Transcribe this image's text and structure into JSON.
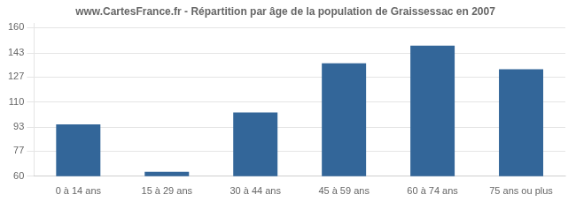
{
  "chart_data": {
    "type": "bar",
    "title": "www.CartesFrance.fr - Répartition par âge de la population de Graissessac en 2007",
    "categories": [
      "0 à 14 ans",
      "15 à 29 ans",
      "30 à 44 ans",
      "45 à 59 ans",
      "60 à 74 ans",
      "75 ans ou plus"
    ],
    "values": [
      95,
      63,
      103,
      136,
      148,
      132
    ],
    "color": "#336699",
    "ylim": [
      60,
      163
    ],
    "yticks": [
      60,
      77,
      93,
      110,
      127,
      143,
      160
    ],
    "grid": true
  }
}
